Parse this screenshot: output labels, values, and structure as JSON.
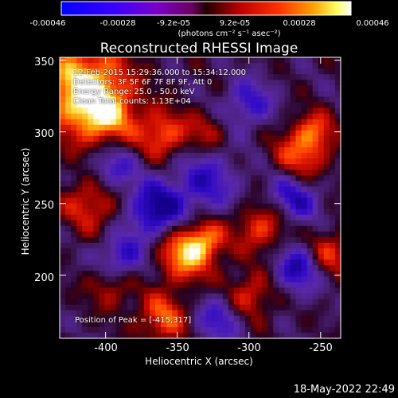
{
  "colorbar": {
    "ticks": [
      "-0.00046",
      "-0.00028",
      "-9.2e-05",
      "9.2e-05",
      "0.00028",
      "0.00046"
    ],
    "units": "(photons cm⁻² s⁻¹ asec⁻²)"
  },
  "chart_data": {
    "type": "heatmap",
    "title": "Reconstructed RHESSI Image",
    "xlabel": "Heliocentric X (arcsec)",
    "ylabel": "Heliocentric Y (arcsec)",
    "xlim": [
      -432,
      -236
    ],
    "ylim": [
      156,
      352
    ],
    "x_ticks": [
      -400,
      -350,
      -300,
      -250
    ],
    "y_ticks": [
      200,
      250,
      300,
      350
    ],
    "colorbar_range": [
      -0.00046,
      0.00046
    ],
    "colormap": "blue-purple-red-orange-yellow-white",
    "peak_position": [
      -415,
      317
    ],
    "annotations": [
      "12-Feb-2015 15:29:36.000 to 15:34:12.000",
      "Detectors: 3F 5F 6F 7F 8F 9F, Att 0",
      "Energy Range: 25.0 - 50.0 keV",
      "Clean    Total counts: 1.13E+04"
    ],
    "peak_label": "Position of Peak = [-415,317]"
  },
  "footer": {
    "timestamp": "18-May-2022 22:49"
  }
}
